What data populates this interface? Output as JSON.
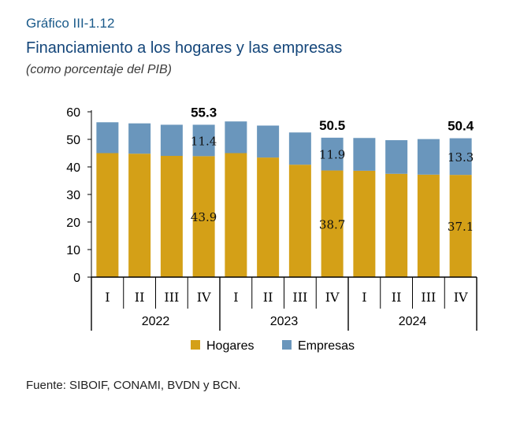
{
  "header": {
    "label": "Gráfico III-1.12",
    "title": "Financiamiento a los hogares y las empresas",
    "subtitle": "(como porcentaje del PIB)"
  },
  "source": "Fuente: SIBOIF, CONAMI, BVDN y BCN.",
  "colors": {
    "hogares": "#D4A017",
    "empresas": "#6A96BC",
    "axis": "#000000"
  },
  "chart_data": {
    "type": "bar",
    "stacked": true,
    "categories": [
      "I",
      "II",
      "III",
      "IV",
      "I",
      "II",
      "III",
      "IV",
      "I",
      "II",
      "III",
      "IV"
    ],
    "groups": [
      {
        "label": "2022",
        "count": 4
      },
      {
        "label": "2023",
        "count": 4
      },
      {
        "label": "2024",
        "count": 4
      }
    ],
    "series": [
      {
        "name": "Hogares",
        "values": [
          45.0,
          44.8,
          44.0,
          43.9,
          45.0,
          43.4,
          40.8,
          38.7,
          38.6,
          37.5,
          37.2,
          37.1
        ]
      },
      {
        "name": "Empresas",
        "values": [
          11.2,
          11.0,
          11.3,
          11.4,
          11.5,
          11.6,
          11.7,
          11.9,
          11.9,
          12.2,
          12.9,
          13.3
        ]
      }
    ],
    "total_labels": [
      "",
      "",
      "",
      "55.3",
      "",
      "",
      "",
      "50.5",
      "",
      "",
      "",
      "50.4"
    ],
    "hogares_labels": [
      "",
      "",
      "",
      "43.9",
      "",
      "",
      "",
      "38.7",
      "",
      "",
      "",
      "37.1"
    ],
    "empresas_labels": [
      "",
      "",
      "",
      "11.4",
      "",
      "",
      "",
      "11.9",
      "",
      "",
      "",
      "13.3"
    ],
    "yticks": [
      "0",
      "10",
      "20",
      "30",
      "40",
      "50",
      "60"
    ],
    "ylim": [
      0,
      60
    ],
    "legend": {
      "position": "bottom"
    }
  }
}
